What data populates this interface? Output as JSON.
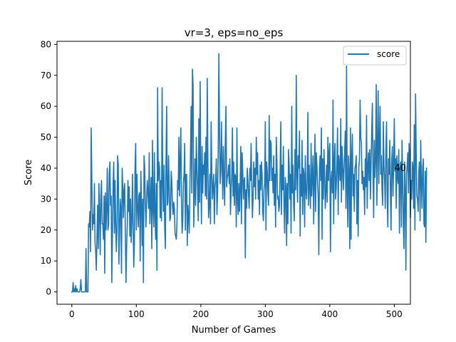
{
  "chart_data": {
    "type": "line",
    "title": "vr=3, eps=no_eps",
    "xlabel": "Number of Games",
    "ylabel": "Score",
    "xlim": [
      -23,
      525
    ],
    "ylim": [
      -4,
      81
    ],
    "xticks": [
      0,
      100,
      200,
      300,
      400,
      500
    ],
    "yticks": [
      0,
      10,
      20,
      30,
      40,
      50,
      60,
      70,
      80
    ],
    "grid": false,
    "legend": {
      "position": "top-right",
      "entries": [
        "score"
      ]
    },
    "line_color": "#1f77b4",
    "annotation": {
      "text": "40",
      "x": 500,
      "y": 40
    },
    "series": [
      {
        "name": "score",
        "x_start": 0,
        "x_step": 1,
        "values": [
          0,
          0,
          3,
          0,
          1,
          0,
          2,
          0,
          1,
          0,
          0,
          0,
          0,
          1,
          4,
          0,
          0,
          0,
          0,
          0,
          0,
          0,
          14,
          0,
          0,
          0,
          22,
          21,
          26,
          13,
          53,
          36,
          20,
          25,
          22,
          35,
          16,
          13,
          7,
          18,
          28,
          14,
          35,
          26,
          12,
          31,
          36,
          22,
          22,
          17,
          31,
          6,
          32,
          20,
          27,
          40,
          20,
          22,
          38,
          42,
          28,
          31,
          3,
          19,
          35,
          42,
          19,
          36,
          22,
          13,
          20,
          44,
          41,
          9,
          19,
          30,
          27,
          6,
          40,
          34,
          24,
          33,
          35,
          18,
          3,
          15,
          22,
          36,
          26,
          34,
          18,
          30,
          16,
          22,
          38,
          23,
          8,
          15,
          40,
          48,
          20,
          38,
          27,
          21,
          31,
          32,
          10,
          39,
          29,
          15,
          30,
          3,
          44,
          40,
          28,
          21,
          30,
          36,
          32,
          27,
          45,
          22,
          29,
          37,
          14,
          49,
          27,
          21,
          45,
          25,
          17,
          35,
          7,
          66,
          36,
          42,
          40,
          24,
          36,
          23,
          66,
          35,
          26,
          41,
          21,
          14,
          41,
          60,
          28,
          29,
          44,
          34,
          23,
          24,
          39,
          36,
          28,
          25,
          29,
          27,
          19,
          18,
          17,
          22,
          36,
          33,
          50,
          31,
          42,
          53,
          30,
          19,
          23,
          35,
          38,
          48,
          20,
          38,
          38,
          15,
          28,
          25,
          19,
          33,
          45,
          60,
          32,
          72,
          67,
          21,
          31,
          43,
          28,
          50,
          40,
          33,
          23,
          56,
          29,
          68,
          38,
          22,
          47,
          32,
          41,
          38,
          45,
          31,
          50,
          30,
          69,
          42,
          24,
          28,
          38,
          22,
          55,
          40,
          30,
          34,
          38,
          22,
          34,
          36,
          43,
          25,
          32,
          45,
          77,
          51,
          35,
          39,
          55,
          42,
          30,
          47,
          36,
          28,
          49,
          60,
          34,
          37,
          38,
          41,
          35,
          43,
          25,
          33,
          38,
          53,
          31,
          42,
          28,
          38,
          37,
          21,
          53,
          30,
          25,
          35,
          26,
          34,
          47,
          22,
          45,
          39,
          30,
          36,
          37,
          11,
          33,
          27,
          40,
          36,
          31,
          27,
          40,
          36,
          48,
          35,
          24,
          30,
          42,
          34,
          40,
          30,
          50,
          38,
          45,
          30,
          36,
          25,
          41,
          33,
          42,
          38,
          26,
          23,
          33,
          35,
          55,
          20,
          42,
          39,
          32,
          28,
          57,
          36,
          49,
          48,
          36,
          40,
          32,
          44,
          28,
          38,
          21,
          50,
          42,
          30,
          31,
          26,
          28,
          39,
          55,
          25,
          41,
          33,
          47,
          28,
          19,
          37,
          34,
          15,
          35,
          22,
          46,
          41,
          30,
          38,
          19,
          60,
          32,
          41,
          28,
          23,
          46,
          33,
          70,
          38,
          29,
          44,
          40,
          52,
          18,
          38,
          31,
          49,
          25,
          40,
          38,
          21,
          44,
          33,
          30,
          36,
          58,
          28,
          41,
          34,
          27,
          48,
          31,
          37,
          44,
          22,
          36,
          51,
          26,
          45,
          41,
          35,
          31,
          12,
          40,
          44,
          36,
          53,
          17,
          43,
          30,
          46,
          38,
          27,
          33,
          41,
          29,
          50,
          36,
          45,
          48,
          13,
          36,
          39,
          32,
          62,
          22,
          42,
          48,
          30,
          34,
          41,
          53,
          25,
          44,
          40,
          36,
          56,
          29,
          47,
          41,
          33,
          39,
          45,
          52,
          27,
          73,
          32,
          21,
          44,
          39,
          14,
          53,
          17,
          44,
          51,
          31,
          38,
          26,
          40,
          41,
          44,
          22,
          36,
          18,
          40,
          43,
          62,
          50,
          48,
          35,
          39,
          33,
          37,
          25,
          43,
          34,
          57,
          27,
          40,
          45,
          36,
          46,
          30,
          41,
          52,
          61,
          39,
          24,
          49,
          37,
          43,
          67,
          28,
          46,
          65,
          35,
          49,
          60,
          38,
          44,
          33,
          28,
          55,
          41,
          36,
          27,
          46,
          55,
          30,
          21,
          43,
          38,
          49,
          33,
          20,
          42,
          47,
          31,
          41,
          56,
          39,
          43,
          27,
          44,
          37,
          35,
          46,
          19,
          40,
          42,
          21,
          49,
          37,
          22,
          14,
          42,
          33,
          7,
          38,
          41,
          45,
          32,
          48,
          43,
          24,
          36,
          30,
          42,
          40,
          27,
          54,
          20,
          64,
          45,
          31,
          30,
          26,
          39,
          42,
          23,
          49,
          36,
          27,
          40,
          43,
          22,
          21,
          39,
          16,
          40
        ]
      }
    ]
  }
}
